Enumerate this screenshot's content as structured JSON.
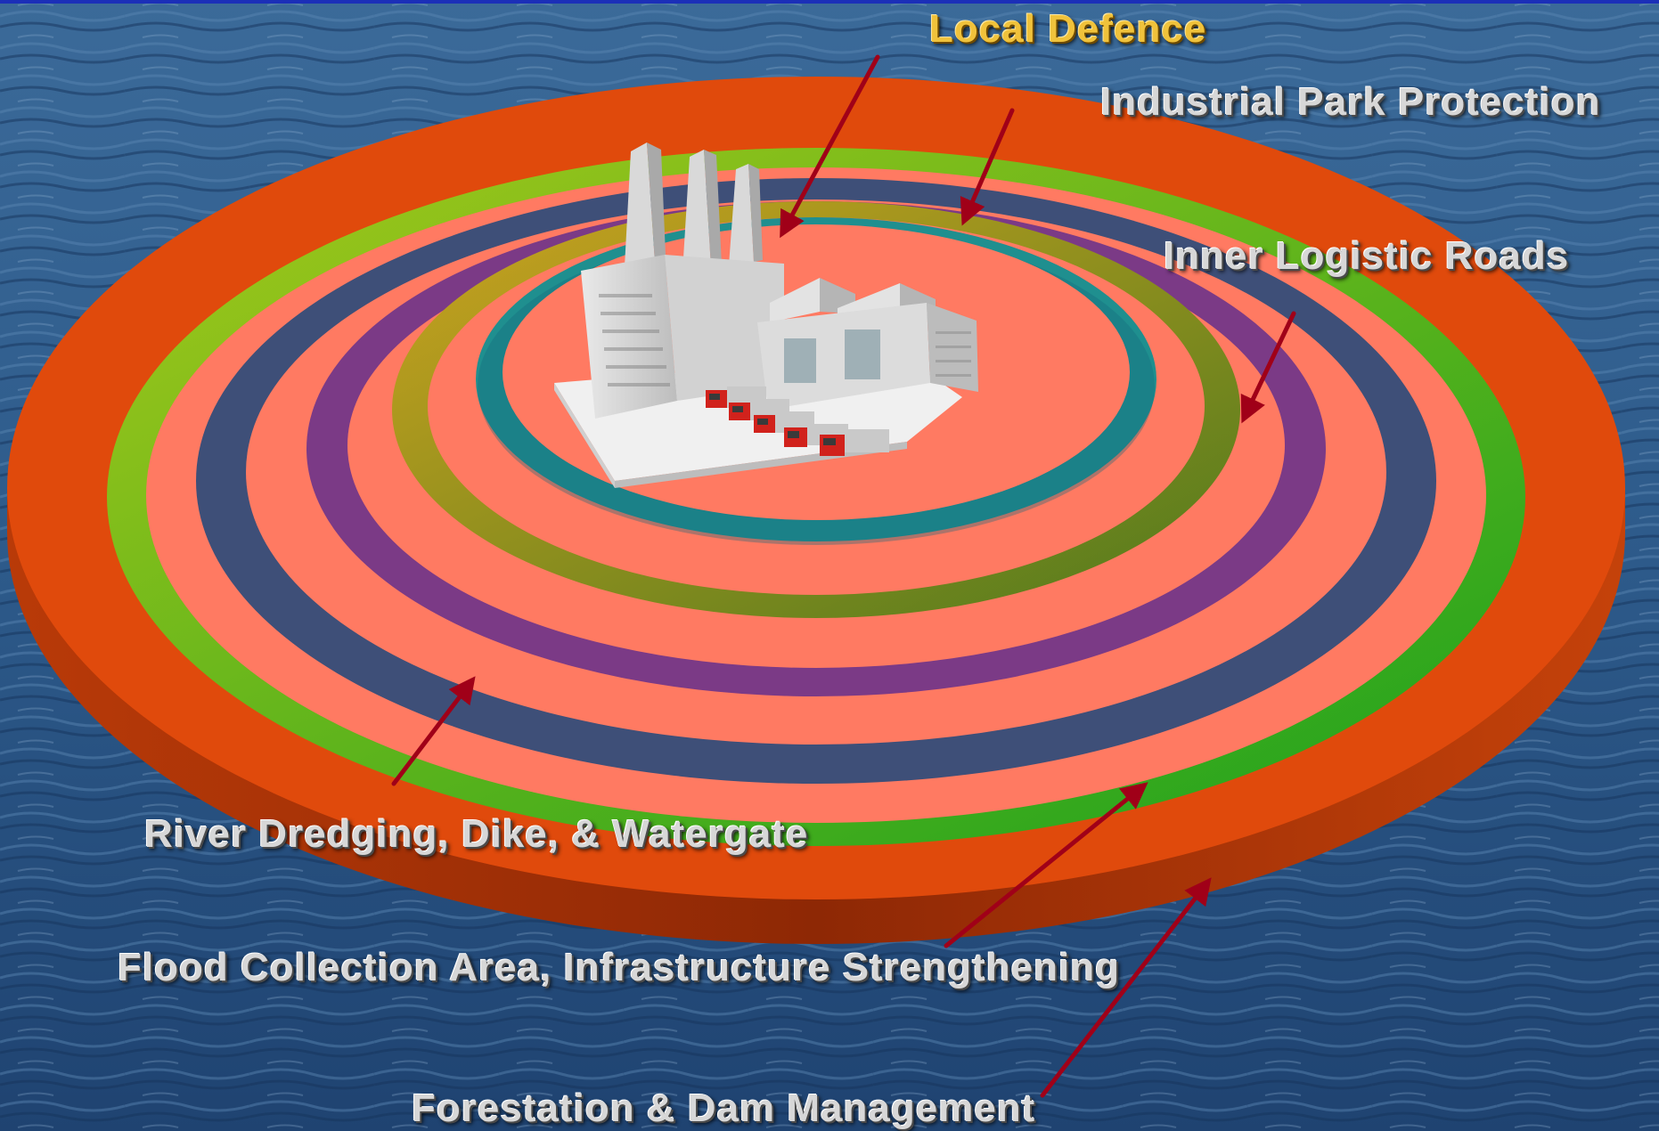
{
  "labels": {
    "local_defence": "Local Defence",
    "industrial_park": "Industrial Park Protection",
    "inner_roads": "Inner Logistic Roads",
    "river": "River Dredging, Dike, & Watergate",
    "flood": "Flood Collection Area, Infrastructure Strengthening",
    "forest": "Forestation & Dam Management"
  },
  "colors": {
    "water": "#2f5f91",
    "base_fill": "#ff7a62",
    "ring_orange": "#e04a0c",
    "ring_green": "#8ac20c",
    "ring_slate": "#3e4f78",
    "ring_purple": "#7b3a86",
    "ring_olive": "#b7a12a",
    "ring_teal": "#1f8f8f",
    "arrow": "#a00018",
    "label_gold": "#f0c23b",
    "label_gray": "#d7d7d7"
  },
  "icons": [
    "factory-icon",
    "truck-icon"
  ]
}
